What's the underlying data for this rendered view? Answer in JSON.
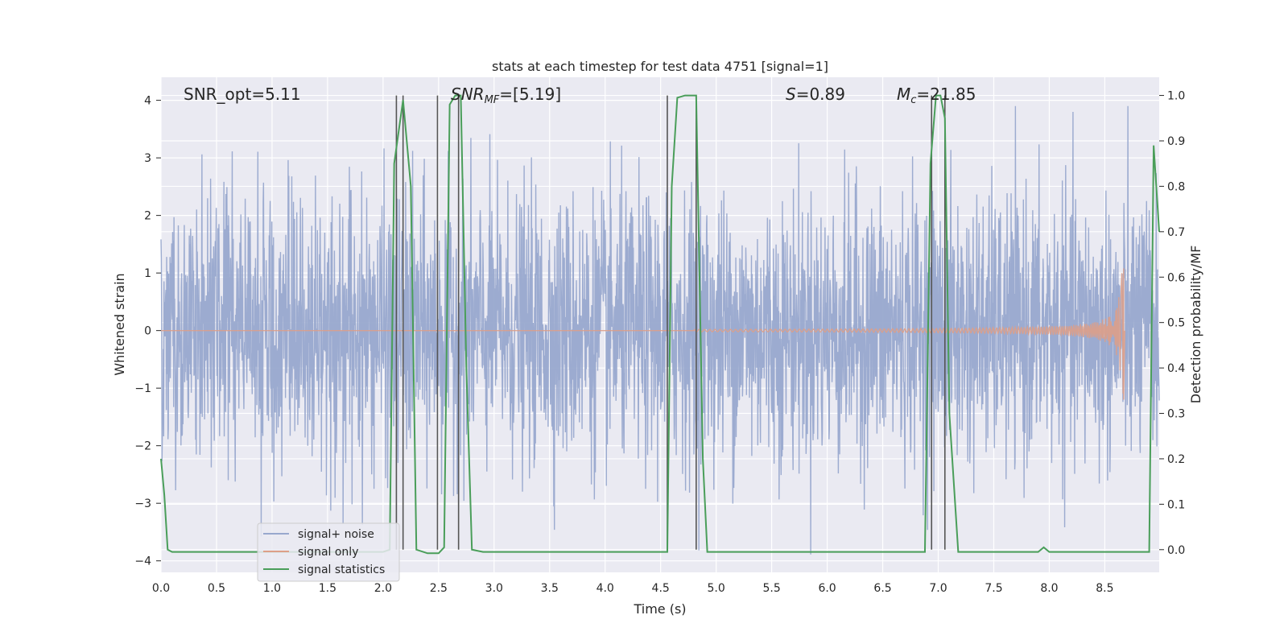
{
  "chart_data": {
    "type": "line",
    "title": "stats at each timestep for test data 4751 [signal=1]",
    "xlabel": "Time (s)",
    "ylabel": "Whitened strain",
    "ylabel_right": "Detection probability/MF",
    "xlim": [
      0,
      8.99
    ],
    "ylim": [
      -4.2,
      4.4
    ],
    "ylim_right": [
      -0.05,
      1.04
    ],
    "x_ticks": [
      0.0,
      0.5,
      1.0,
      1.5,
      2.0,
      2.5,
      3.0,
      3.5,
      4.0,
      4.5,
      5.0,
      5.5,
      6.0,
      6.5,
      7.0,
      7.5,
      8.0,
      8.5
    ],
    "x_tick_labels": [
      "0.0",
      "0.5",
      "1.0",
      "1.5",
      "2.0",
      "2.5",
      "3.0",
      "3.5",
      "4.0",
      "4.5",
      "5.0",
      "5.5",
      "6.0",
      "6.5",
      "7.0",
      "7.5",
      "8.0",
      "8.5"
    ],
    "y_ticks": [
      4,
      3,
      2,
      1,
      0,
      -1,
      -2,
      -3,
      -4
    ],
    "y_tick_labels": [
      "4",
      "3",
      "2",
      "1",
      "0",
      "−1",
      "−2",
      "−3",
      "−4"
    ],
    "y_ticks_right": [
      1.0,
      0.9,
      0.8,
      0.7,
      0.6,
      0.5,
      0.4,
      0.3,
      0.2,
      0.1,
      0.0
    ],
    "y_tick_labels_right": [
      "1.0",
      "0.9",
      "0.8",
      "0.7",
      "0.6",
      "0.5",
      "0.4",
      "0.3",
      "0.2",
      "0.1",
      "0.0"
    ],
    "grid": true,
    "legend_position": "lower-left",
    "annotations": {
      "snr_opt": "SNR_opt=5.11",
      "snr_mf_main": "SNR",
      "snr_mf_sub": "MF",
      "snr_mf_rest": "=[5.19]",
      "s_main": "S",
      "s_rest": "=0.89",
      "mc_main": "M",
      "mc_sub": "c",
      "mc_rest": "=21.85"
    },
    "series": [
      {
        "name": "signal+ noise",
        "color": "#98a8cd",
        "description_values": "dense white noise, approximately within [-3.8, 3.8] across 0–9 s"
      },
      {
        "name": "signal only",
        "color": "#dd9f88",
        "chirp": {
          "start_x": 4.8,
          "end_x": 8.67,
          "start_amp": 0.02,
          "peak_amp": 1.08,
          "trough_amp": -1.2
        }
      },
      {
        "name": "signal statistics",
        "color": "#4a9e5a",
        "x": [
          0.0,
          0.03,
          0.06,
          0.1,
          0.2,
          1.8,
          2.0,
          2.06,
          2.1,
          2.18,
          2.25,
          2.3,
          2.4,
          2.45,
          2.5,
          2.55,
          2.6,
          2.65,
          2.7,
          2.75,
          2.8,
          2.9,
          3.0,
          3.2,
          3.5,
          3.8,
          4.0,
          4.3,
          4.56,
          4.6,
          4.65,
          4.72,
          4.82,
          4.88,
          4.92,
          5.2,
          6.0,
          6.8,
          6.88,
          6.93,
          6.98,
          7.02,
          7.06,
          7.1,
          7.18,
          7.3,
          7.6,
          7.9,
          7.95,
          8.0,
          8.5,
          8.9,
          8.94,
          8.99
        ],
        "y": [
          0.2,
          0.12,
          0.0,
          -0.005,
          -0.005,
          -0.005,
          -0.005,
          0.0,
          0.85,
          0.99,
          0.8,
          0.0,
          -0.008,
          -0.008,
          -0.008,
          0.005,
          0.98,
          1.0,
          1.0,
          0.4,
          0.0,
          -0.005,
          -0.005,
          -0.005,
          -0.005,
          -0.005,
          -0.005,
          -0.005,
          -0.005,
          0.8,
          0.995,
          1.0,
          1.0,
          0.2,
          -0.005,
          -0.005,
          -0.005,
          -0.005,
          -0.005,
          0.85,
          1.0,
          1.0,
          0.95,
          0.3,
          -0.005,
          -0.005,
          -0.005,
          -0.005,
          0.005,
          -0.005,
          -0.005,
          -0.005,
          0.89,
          0.7
        ]
      }
    ],
    "vertical_lines_x": [
      2.12,
      2.18,
      2.49,
      2.68,
      4.56,
      4.82,
      6.94,
      7.06
    ],
    "vertical_lines_color": "#555555",
    "background_color": "#eaeaf2"
  }
}
